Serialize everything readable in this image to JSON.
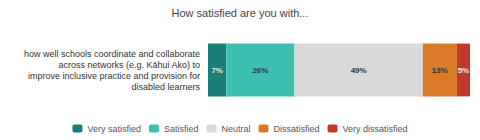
{
  "chart_data": {
    "type": "bar",
    "orientation": "horizontal",
    "stacked": true,
    "title": "How satisfied are you with...",
    "categories": [
      "how well schools coordinate and collaborate\nacross networks (e.g. Kāhui Ako) to\nimprove inclusive practice and provision for\ndisabled learners"
    ],
    "series": [
      {
        "name": "Very satisfied",
        "color": "#1a7f74",
        "values": [
          7
        ],
        "value_labels": [
          "7%"
        ]
      },
      {
        "name": "Satisfied",
        "color": "#3dbfb0",
        "values": [
          26
        ],
        "value_labels": [
          "26%"
        ]
      },
      {
        "name": "Neutral",
        "color": "#d9d9d9",
        "values": [
          49
        ],
        "value_labels": [
          "49%"
        ]
      },
      {
        "name": "Dissatisfied",
        "color": "#d97b27",
        "values": [
          13
        ],
        "value_labels": [
          "13%"
        ]
      },
      {
        "name": "Very dissatisfied",
        "color": "#c0392b",
        "values": [
          5
        ],
        "value_labels": [
          "5%"
        ]
      }
    ],
    "xlim": [
      0,
      100
    ],
    "data_labels": true,
    "tick_labels": false,
    "grid": false,
    "legend": "bottom"
  }
}
